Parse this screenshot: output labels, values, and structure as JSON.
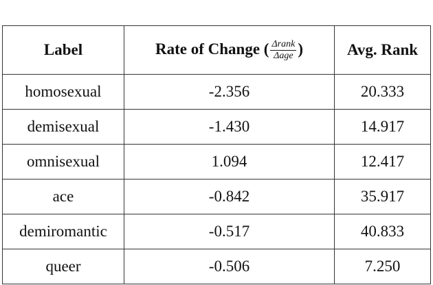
{
  "table": {
    "header": {
      "label": "Label",
      "rate": {
        "prefix": "Rate of Change (",
        "numerator": "Δrank",
        "denominator": "Δage",
        "suffix": ")"
      },
      "avg": "Avg. Rank"
    },
    "rows": [
      [
        "homosexual",
        "-2.356",
        "20.333"
      ],
      [
        "demisexual",
        "-1.430",
        "14.917"
      ],
      [
        "omnisexual",
        "1.094",
        "12.417"
      ],
      [
        "ace",
        "-0.842",
        "35.917"
      ],
      [
        "demiromantic",
        "-0.517",
        "40.833"
      ],
      [
        "queer",
        "-0.506",
        "7.250"
      ]
    ]
  }
}
